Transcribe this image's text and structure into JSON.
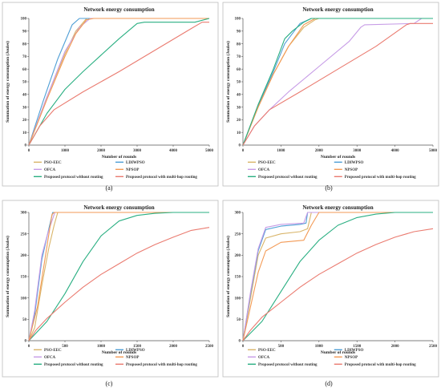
{
  "chart_data": [
    {
      "type": "line",
      "caption": "(a)",
      "title": "Network energy consumption",
      "xlabel": "Number of rounds",
      "ylabel": "Summation of energy consumption (Joules)",
      "xlim": [
        0,
        5000
      ],
      "ylim": [
        0,
        100
      ],
      "xticks": [
        0,
        1000,
        2000,
        3000,
        4000,
        5000
      ],
      "yticks": [
        0,
        10,
        20,
        30,
        40,
        50,
        60,
        70,
        80,
        90,
        100
      ],
      "legend": [
        "PSO-EEC",
        "LDIWPSO",
        "OFCA",
        "NPSOP",
        "Proposed protocol without routing",
        "Proposed protocol with multi-hop routing"
      ],
      "series": [
        {
          "name": "PSO-EEC",
          "color": "#d9b56a",
          "points": [
            [
              0,
              0
            ],
            [
              500,
              38
            ],
            [
              1000,
              72
            ],
            [
              1300,
              90
            ],
            [
              1600,
              100
            ],
            [
              5000,
              100
            ]
          ]
        },
        {
          "name": "LDIWPSO",
          "color": "#4f9fd6",
          "points": [
            [
              0,
              0
            ],
            [
              400,
              35
            ],
            [
              800,
              68
            ],
            [
              1200,
              95
            ],
            [
              1400,
              100
            ],
            [
              5000,
              100
            ]
          ]
        },
        {
          "name": "OFCA",
          "color": "#c79ce6",
          "points": [
            [
              0,
              0
            ],
            [
              500,
              38
            ],
            [
              1000,
              74
            ],
            [
              1400,
              93
            ],
            [
              1700,
              100
            ],
            [
              5000,
              100
            ]
          ]
        },
        {
          "name": "NPSOP",
          "color": "#f39a55",
          "points": [
            [
              0,
              0
            ],
            [
              500,
              36
            ],
            [
              1000,
              70
            ],
            [
              1300,
              88
            ],
            [
              1600,
              99
            ],
            [
              1800,
              100
            ],
            [
              5000,
              100
            ]
          ]
        },
        {
          "name": "Proposed protocol without routing",
          "color": "#2aaf82",
          "points": [
            [
              0,
              0
            ],
            [
              500,
              25
            ],
            [
              1000,
              44
            ],
            [
              1500,
              58
            ],
            [
              2000,
              71
            ],
            [
              2500,
              84
            ],
            [
              3000,
              96
            ],
            [
              3200,
              97
            ],
            [
              4600,
              97
            ],
            [
              5000,
              100
            ]
          ]
        },
        {
          "name": "Proposed protocol with multi-hop routing",
          "color": "#ea7b70",
          "points": [
            [
              0,
              0
            ],
            [
              300,
              15
            ],
            [
              700,
              28
            ],
            [
              1500,
              42
            ],
            [
              2500,
              58
            ],
            [
              3500,
              75
            ],
            [
              4500,
              92
            ],
            [
              4800,
              97
            ],
            [
              5000,
              97
            ]
          ]
        }
      ]
    },
    {
      "type": "line",
      "caption": "(b)",
      "title": "Network energy consumption",
      "xlabel": "Number of rounds",
      "ylabel": "Summation of energy consumption (Joules)",
      "xlim": [
        0,
        5000
      ],
      "ylim": [
        0,
        100
      ],
      "xticks": [
        0,
        1000,
        2000,
        3000,
        4000,
        5000
      ],
      "yticks": [
        0,
        10,
        20,
        30,
        40,
        50,
        60,
        70,
        80,
        90,
        100
      ],
      "legend": [
        "PSO-EEC",
        "LDIWPSO",
        "OFCA",
        "NPSOP",
        "Proposed protocol without routing",
        "Proposed protocol with multi-hop routing"
      ],
      "series": [
        {
          "name": "PSO-EEC",
          "color": "#d9b56a",
          "points": [
            [
              0,
              0
            ],
            [
              400,
              30
            ],
            [
              800,
              56
            ],
            [
              1200,
              78
            ],
            [
              1600,
              93
            ],
            [
              1900,
              99
            ],
            [
              2000,
              100
            ],
            [
              5000,
              100
            ]
          ]
        },
        {
          "name": "LDIWPSO",
          "color": "#4f9fd6",
          "points": [
            [
              0,
              0
            ],
            [
              400,
              31
            ],
            [
              800,
              58
            ],
            [
              1100,
              80
            ],
            [
              1500,
              96
            ],
            [
              1800,
              100
            ],
            [
              5000,
              100
            ]
          ]
        },
        {
          "name": "OFCA",
          "color": "#c79ce6",
          "points": [
            [
              0,
              0
            ],
            [
              300,
              15
            ],
            [
              700,
              28
            ],
            [
              1200,
              42
            ],
            [
              2000,
              62
            ],
            [
              2800,
              82
            ],
            [
              3100,
              93
            ],
            [
              3200,
              95
            ],
            [
              4500,
              96
            ],
            [
              4700,
              100
            ],
            [
              5000,
              100
            ]
          ]
        },
        {
          "name": "NPSOP",
          "color": "#f39a55",
          "points": [
            [
              0,
              0
            ],
            [
              400,
              30
            ],
            [
              800,
              56
            ],
            [
              1200,
              78
            ],
            [
              1600,
              95
            ],
            [
              1900,
              100
            ],
            [
              5000,
              100
            ]
          ]
        },
        {
          "name": "Proposed protocol without routing",
          "color": "#2aaf82",
          "points": [
            [
              0,
              0
            ],
            [
              400,
              32
            ],
            [
              800,
              60
            ],
            [
              1100,
              84
            ],
            [
              1300,
              90
            ],
            [
              1600,
              97
            ],
            [
              1800,
              100
            ],
            [
              5000,
              100
            ]
          ]
        },
        {
          "name": "Proposed protocol with multi-hop routing",
          "color": "#ea7b70",
          "points": [
            [
              0,
              0
            ],
            [
              300,
              15
            ],
            [
              700,
              28
            ],
            [
              1500,
              42
            ],
            [
              2500,
              60
            ],
            [
              3500,
              78
            ],
            [
              4300,
              95
            ],
            [
              4400,
              96
            ],
            [
              5000,
              96
            ]
          ]
        }
      ]
    },
    {
      "type": "line",
      "caption": "(c)",
      "title": "Network energy consumption",
      "xlabel": "Number of rounds",
      "ylabel": "Summation of energy consumption (Joules)",
      "xlim": [
        0,
        2500
      ],
      "ylim": [
        0,
        300
      ],
      "xticks": [
        0,
        500,
        1000,
        1500,
        2000,
        2500
      ],
      "yticks": [
        0,
        50,
        100,
        150,
        200,
        250,
        300
      ],
      "legend": [
        "PSO-EEC",
        "LDIWPSO",
        "OFCA",
        "NPSOP",
        "Proposed protocol without routing",
        "Proposed protocol with multi-hop routing"
      ],
      "series": [
        {
          "name": "PSO-EEC",
          "color": "#d9b56a",
          "points": [
            [
              0,
              0
            ],
            [
              80,
              30
            ],
            [
              180,
              130
            ],
            [
              280,
              220
            ],
            [
              350,
              270
            ],
            [
              400,
              300
            ],
            [
              2500,
              300
            ]
          ]
        },
        {
          "name": "LDIWPSO",
          "color": "#4f9fd6",
          "points": [
            [
              0,
              0
            ],
            [
              80,
              60
            ],
            [
              180,
              190
            ],
            [
              260,
              250
            ],
            [
              330,
              300
            ],
            [
              2500,
              300
            ]
          ]
        },
        {
          "name": "OFCA",
          "color": "#c79ce6",
          "points": [
            [
              0,
              0
            ],
            [
              80,
              70
            ],
            [
              180,
              200
            ],
            [
              260,
              250
            ],
            [
              360,
              300
            ],
            [
              2500,
              300
            ]
          ]
        },
        {
          "name": "NPSOP",
          "color": "#f39a55",
          "points": [
            [
              0,
              0
            ],
            [
              120,
              80
            ],
            [
              250,
              220
            ],
            [
              320,
              295
            ],
            [
              350,
              300
            ],
            [
              2500,
              300
            ]
          ]
        },
        {
          "name": "Proposed protocol without routing",
          "color": "#2aaf82",
          "points": [
            [
              0,
              0
            ],
            [
              250,
              45
            ],
            [
              500,
              110
            ],
            [
              750,
              185
            ],
            [
              1000,
              245
            ],
            [
              1250,
              280
            ],
            [
              1500,
              293
            ],
            [
              1750,
              298
            ],
            [
              2000,
              300
            ],
            [
              2500,
              300
            ]
          ]
        },
        {
          "name": "Proposed protocol with multi-hop routing",
          "color": "#ea7b70",
          "points": [
            [
              0,
              0
            ],
            [
              100,
              25
            ],
            [
              250,
              52
            ],
            [
              500,
              90
            ],
            [
              750,
              125
            ],
            [
              1000,
              155
            ],
            [
              1250,
              180
            ],
            [
              1500,
              205
            ],
            [
              1750,
              225
            ],
            [
              2000,
              242
            ],
            [
              2250,
              258
            ],
            [
              2500,
              265
            ]
          ]
        }
      ]
    },
    {
      "type": "line",
      "caption": "(d)",
      "title": "Network energy consumption",
      "xlabel": "Number of rounds",
      "ylabel": "Summation of energy consumption (Joules)",
      "xlim": [
        0,
        2500
      ],
      "ylim": [
        0,
        300
      ],
      "xticks": [
        0,
        500,
        1000,
        1500,
        2000,
        2500
      ],
      "yticks": [
        0,
        50,
        100,
        150,
        200,
        250,
        300
      ],
      "legend": [
        "PSO-EEC",
        "LDIWPSO",
        "OFCA",
        "NPSOP",
        "Proposed protocol without routing",
        "Proposed protocol with multi-hop routing"
      ],
      "series": [
        {
          "name": "PSO-EEC",
          "color": "#d9b56a",
          "points": [
            [
              0,
              0
            ],
            [
              100,
              100
            ],
            [
              200,
              200
            ],
            [
              300,
              240
            ],
            [
              500,
              250
            ],
            [
              750,
              255
            ],
            [
              850,
              262
            ],
            [
              900,
              300
            ],
            [
              2500,
              300
            ]
          ]
        },
        {
          "name": "LDIWPSO",
          "color": "#4f9fd6",
          "points": [
            [
              0,
              0
            ],
            [
              100,
              110
            ],
            [
              200,
              210
            ],
            [
              300,
              260
            ],
            [
              500,
              268
            ],
            [
              750,
              272
            ],
            [
              830,
              275
            ],
            [
              850,
              300
            ],
            [
              2500,
              300
            ]
          ]
        },
        {
          "name": "OFCA",
          "color": "#c79ce6",
          "points": [
            [
              0,
              0
            ],
            [
              100,
              115
            ],
            [
              200,
              215
            ],
            [
              300,
              265
            ],
            [
              500,
              272
            ],
            [
              800,
              275
            ],
            [
              850,
              300
            ],
            [
              2500,
              300
            ]
          ]
        },
        {
          "name": "NPSOP",
          "color": "#f39a55",
          "points": [
            [
              0,
              0
            ],
            [
              100,
              80
            ],
            [
              200,
              160
            ],
            [
              300,
              210
            ],
            [
              500,
              230
            ],
            [
              800,
              235
            ],
            [
              900,
              270
            ],
            [
              1000,
              300
            ],
            [
              2500,
              300
            ]
          ]
        },
        {
          "name": "Proposed protocol without routing",
          "color": "#2aaf82",
          "points": [
            [
              0,
              0
            ],
            [
              250,
              45
            ],
            [
              500,
              115
            ],
            [
              750,
              185
            ],
            [
              1000,
              235
            ],
            [
              1250,
              270
            ],
            [
              1500,
              288
            ],
            [
              1750,
              296
            ],
            [
              2000,
              300
            ],
            [
              2500,
              300
            ]
          ]
        },
        {
          "name": "Proposed protocol with multi-hop routing",
          "color": "#ea7b70",
          "points": [
            [
              0,
              0
            ],
            [
              100,
              25
            ],
            [
              250,
              55
            ],
            [
              500,
              90
            ],
            [
              750,
              125
            ],
            [
              1000,
              155
            ],
            [
              1250,
              180
            ],
            [
              1500,
              205
            ],
            [
              1750,
              225
            ],
            [
              2000,
              242
            ],
            [
              2250,
              255
            ],
            [
              2500,
              262
            ]
          ]
        }
      ]
    }
  ]
}
